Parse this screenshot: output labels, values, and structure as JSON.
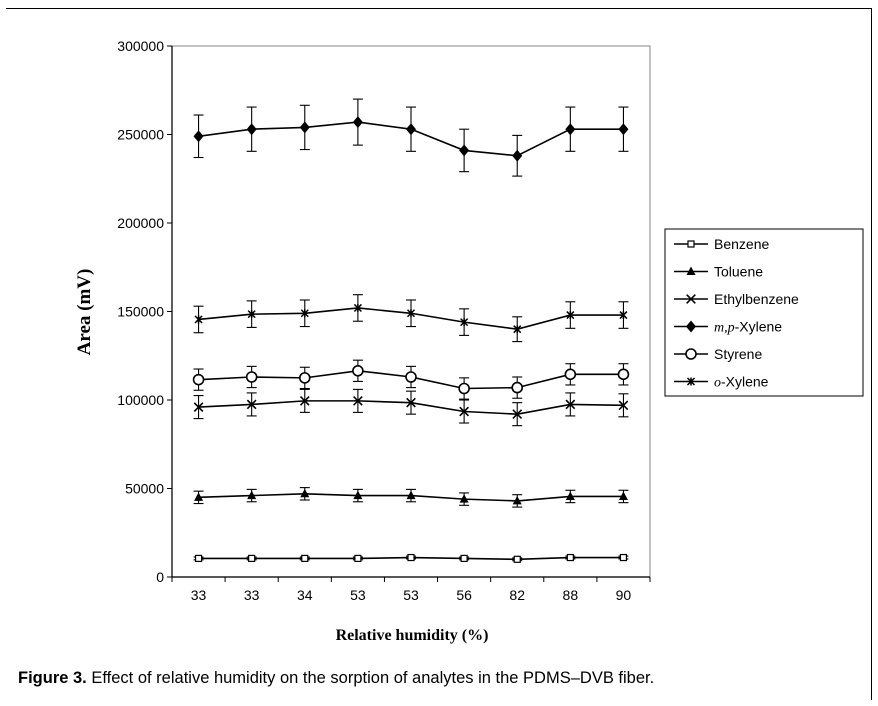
{
  "caption": {
    "label": "Figure 3.",
    "text": "Effect of relative humidity on the sorption of analytes in the PDMS–DVB fiber."
  },
  "chart_data": {
    "type": "line",
    "categories": [
      "33",
      "33",
      "34",
      "53",
      "53",
      "56",
      "82",
      "88",
      "90"
    ],
    "xlabel": "Relative humidity (%)",
    "ylabel": "Area (mV)",
    "ylim": [
      0,
      300000
    ],
    "yticks": [
      "0",
      "50000",
      "100000",
      "150000",
      "200000",
      "250000",
      "300000"
    ],
    "grid": false,
    "legend_position": "right",
    "series": [
      {
        "name": "Benzene",
        "marker": "open-square",
        "values": [
          10500,
          10500,
          10500,
          10500,
          11000,
          10500,
          10000,
          11000,
          11000
        ],
        "errors": [
          800,
          800,
          800,
          800,
          800,
          800,
          800,
          800,
          800
        ]
      },
      {
        "name": "Toluene",
        "marker": "filled-triangle",
        "values": [
          45000,
          46000,
          47000,
          46000,
          46000,
          44000,
          43000,
          45500,
          45500
        ],
        "errors": [
          3500,
          3500,
          3500,
          3500,
          3500,
          3500,
          3500,
          3500,
          3500
        ]
      },
      {
        "name": "Ethylbenzene",
        "marker": "x",
        "values": [
          96000,
          97500,
          99500,
          99500,
          98500,
          93500,
          92000,
          97500,
          97000
        ],
        "errors": [
          6500,
          6500,
          6500,
          6500,
          6500,
          6500,
          6500,
          6500,
          6500
        ]
      },
      {
        "name_italic": "m,p",
        "name": "-Xylene",
        "marker": "filled-diamond",
        "values": [
          249000,
          253000,
          254000,
          257000,
          253000,
          241000,
          238000,
          253000,
          253000
        ],
        "errors": [
          12000,
          12500,
          12500,
          13000,
          12500,
          12000,
          11500,
          12500,
          12500
        ]
      },
      {
        "name": "Styrene",
        "marker": "open-circle",
        "values": [
          111500,
          113000,
          112500,
          116500,
          113000,
          106500,
          107000,
          114500,
          114500
        ],
        "errors": [
          6000,
          6000,
          6000,
          6000,
          6000,
          6000,
          6000,
          6000,
          6000
        ]
      },
      {
        "name_italic": "o",
        "name": "-Xylene",
        "marker": "star",
        "values": [
          145500,
          148500,
          149000,
          152000,
          149000,
          144000,
          140000,
          148000,
          148000
        ],
        "errors": [
          7500,
          7500,
          7500,
          7500,
          7500,
          7500,
          7000,
          7500,
          7500
        ]
      }
    ]
  }
}
